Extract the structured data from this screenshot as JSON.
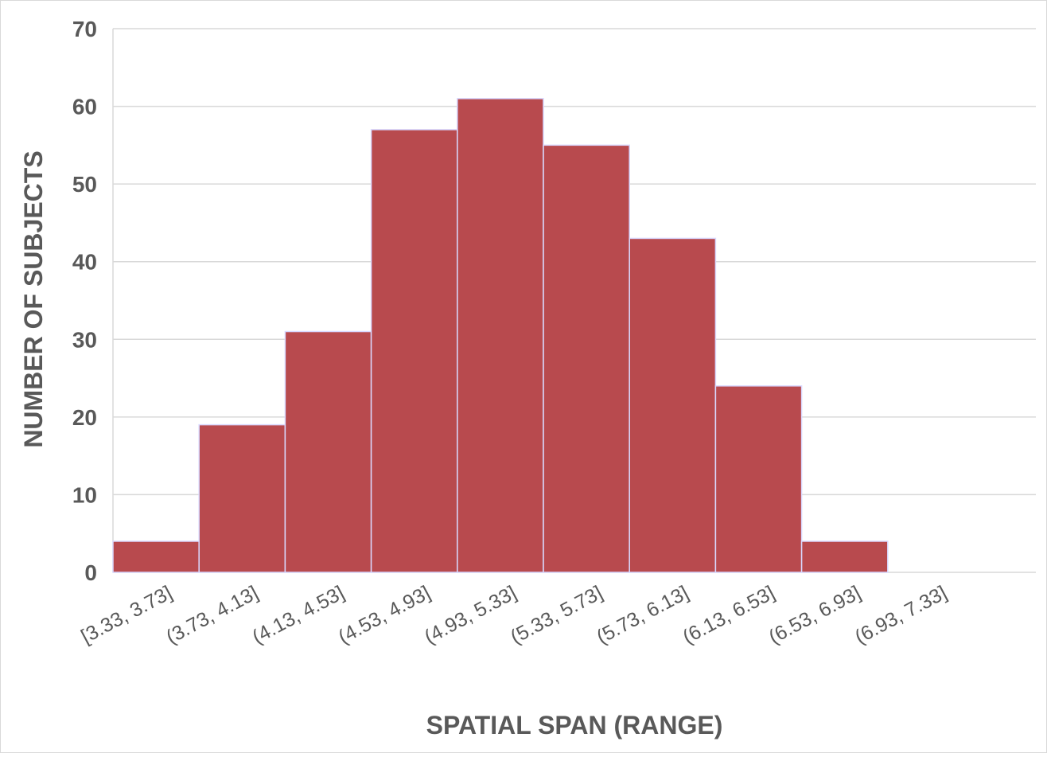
{
  "chart_data": {
    "type": "bar",
    "title": "",
    "xlabel": "SPATIAL SPAN (RANGE)",
    "ylabel": "NUMBER OF SUBJECTS",
    "categories": [
      "[3.33, 3.73]",
      "(3.73, 4.13]",
      "(4.13, 4.53]",
      "(4.53, 4.93]",
      "(4.93, 5.33]",
      "(5.33, 5.73]",
      "(5.73, 6.13]",
      "(6.13, 6.53]",
      "(6.53, 6.93]",
      "(6.93, 7.33]"
    ],
    "values": [
      4,
      19,
      31,
      57,
      61,
      55,
      43,
      24,
      4,
      0
    ],
    "ylim": [
      0,
      70
    ],
    "yticks": [
      0,
      10,
      20,
      30,
      40,
      50,
      60,
      70
    ],
    "grid": true,
    "colors": {
      "bar": "#b84a4e",
      "bar_edge": "#d9d9ff",
      "grid": "#d9d9d9",
      "text": "#595959"
    }
  }
}
